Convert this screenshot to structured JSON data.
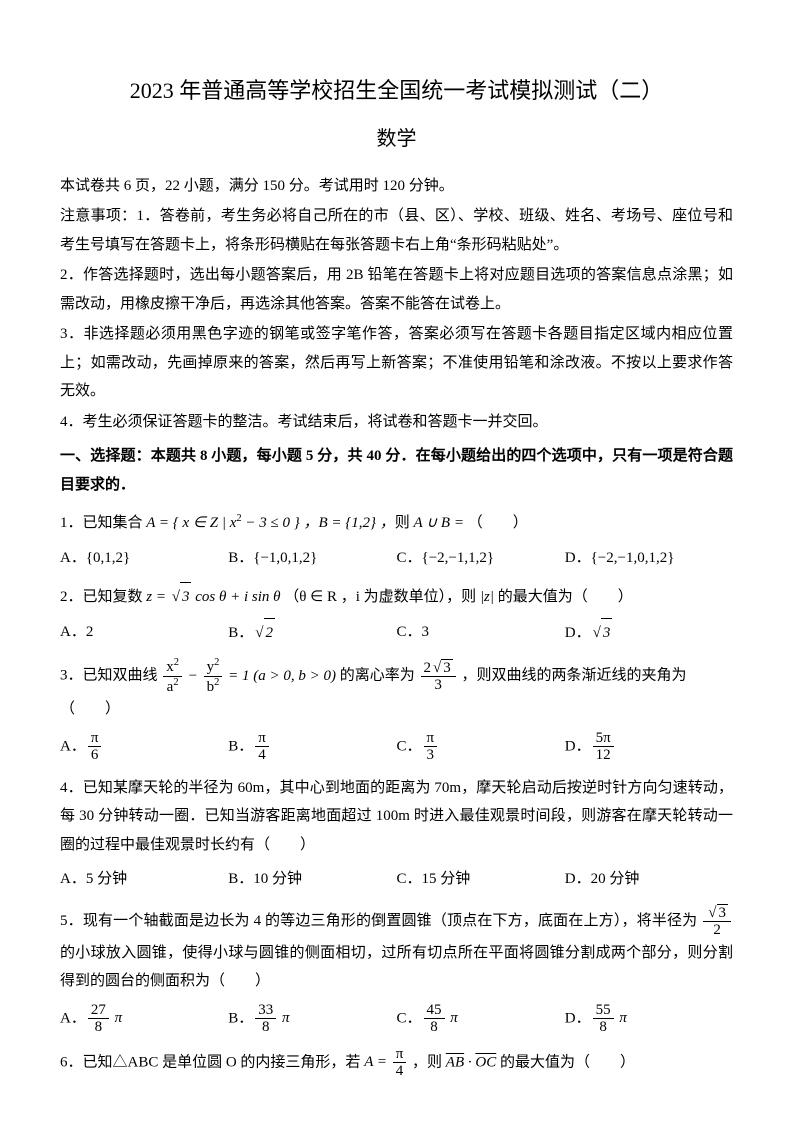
{
  "title": "2023 年普通高等学校招生全国统一考试模拟测试（二）",
  "subtitle": "数学",
  "intro": [
    "本试卷共 6 页，22 小题，满分 150 分。考试用时 120 分钟。",
    "注意事项：1．答卷前，考生务必将自己所在的市（县、区）、学校、班级、姓名、考场号、座位号和考生号填写在答题卡上，将条形码横贴在每张答题卡右上角“条形码粘贴处”。",
    "2．作答选择题时，选出每小题答案后，用 2B 铅笔在答题卡上将对应题目选项的答案信息点涂黑；如需改动，用橡皮擦干净后，再选涂其他答案。答案不能答在试卷上。",
    "3．非选择题必须用黑色字迹的钢笔或签字笔作答，答案必须写在答题卡各题目指定区域内相应位置上；如需改动，先画掉原来的答案，然后再写上新答案；不准使用铅笔和涂改液。不按以上要求作答无效。",
    "4．考生必须保证答题卡的整洁。考试结束后，将试卷和答题卡一并交回。"
  ],
  "section1_head": "一、选择题：本题共 8 小题，每小题 5 分，共 40 分．在每小题给出的四个选项中，只有一项是符合题目要求的．",
  "q1": {
    "stem_pre": "1．已知集合 ",
    "stem_post": "（　　）",
    "A": "A．{0,1,2}",
    "B": "B．{−1,0,1,2}",
    "C": "C．{−2,−1,1,2}",
    "D": "D．{−2,−1,0,1,2}"
  },
  "q2": {
    "stem_pre": "2．已知复数 ",
    "stem_mid": "（θ ∈ R ，i 为虚数单位），则 ",
    "stem_post": " 的最大值为（　　）",
    "A": "A．2",
    "B_pre": "B．",
    "C": "C．3",
    "D_pre": "D．"
  },
  "q3": {
    "stem_pre": "3．已知双曲线 ",
    "stem_mid1": " 的离心率为 ",
    "stem_post": "，则双曲线的两条渐近线的夹角为（　　）",
    "A_pre": "A．",
    "B_pre": "B．",
    "C_pre": "C．",
    "D_pre": "D．"
  },
  "q4": {
    "stem": "4．已知某摩天轮的半径为 60m，其中心到地面的距离为 70m，摩天轮启动后按逆时针方向匀速转动，每 30 分钟转动一圈．已知当游客距离地面超过 100m 时进入最佳观景时间段，则游客在摩天轮转动一圈的过程中最佳观景时长约有（　　）",
    "A": "A．5 分钟",
    "B": "B．10 分钟",
    "C": "C．15 分钟",
    "D": "D．20 分钟"
  },
  "q5": {
    "stem_pre": "5．现有一个轴截面是边长为 4 的等边三角形的倒置圆锥（顶点在下方，底面在上方），将半径为 ",
    "stem_post": " 的小球放入圆锥，使得小球与圆锥的侧面相切，过所有切点所在平面将圆锥分割成两个部分，则分割得到的圆台的侧面积为（　　）",
    "A_pre": "A．",
    "B_pre": "B．",
    "C_pre": "C．",
    "D_pre": "D．"
  },
  "q6": {
    "stem_pre": "6．已知△ABC 是单位圆 O 的内接三角形，若 ",
    "stem_mid": "，则 ",
    "stem_post": " 的最大值为（　　）"
  },
  "pi": "π",
  "nums": {
    "two": "2",
    "three": "3",
    "four": "4",
    "five": "5",
    "six": "6",
    "eight": "8",
    "twelve": "12",
    "twentyseven": "27",
    "thirtythree": "33",
    "fortyfive": "45",
    "fiftyfive": "55"
  }
}
